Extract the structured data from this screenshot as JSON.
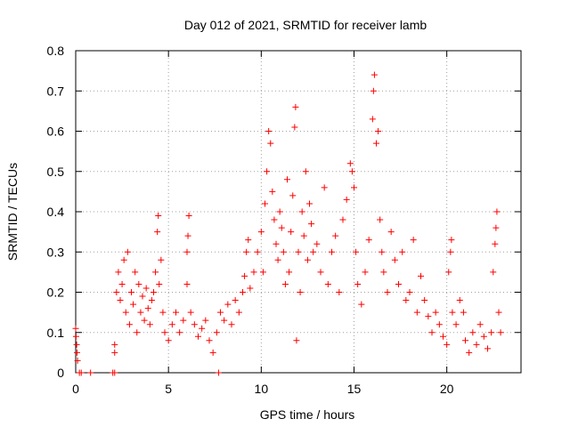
{
  "chart_data": {
    "type": "scatter",
    "title": "Day 012 of 2021, SRMTID for receiver lamb",
    "xlabel": "GPS time / hours",
    "ylabel": "SRMTID / TECUs",
    "xlim": [
      0,
      24
    ],
    "ylim": [
      0,
      0.8
    ],
    "xticks": [
      0,
      5,
      10,
      15,
      20
    ],
    "xtick_labels": [
      "0",
      "5",
      "10",
      "15",
      "20"
    ],
    "yticks": [
      0,
      0.1,
      0.2,
      0.3,
      0.4,
      0.5,
      0.6,
      0.7,
      0.8
    ],
    "ytick_labels": [
      "0",
      "0.1",
      "0.2",
      "0.3",
      "0.4",
      "0.5",
      "0.6",
      "0.7",
      "0.8"
    ],
    "grid": true,
    "marker": "+",
    "color": "#ff0000",
    "series": [
      {
        "name": "SRMTID",
        "points": [
          [
            0.0,
            0.11
          ],
          [
            0.02,
            0.09
          ],
          [
            0.05,
            0.07
          ],
          [
            0.07,
            0.05
          ],
          [
            0.1,
            0.03
          ],
          [
            0.2,
            0.0
          ],
          [
            0.3,
            0.0
          ],
          [
            0.8,
            0.0
          ],
          [
            2.0,
            0.0
          ],
          [
            2.1,
            0.0
          ],
          [
            7.7,
            0.0
          ],
          [
            2.1,
            0.05
          ],
          [
            2.1,
            0.07
          ],
          [
            2.2,
            0.2
          ],
          [
            2.3,
            0.25
          ],
          [
            2.4,
            0.18
          ],
          [
            2.5,
            0.22
          ],
          [
            2.6,
            0.28
          ],
          [
            2.7,
            0.15
          ],
          [
            2.8,
            0.3
          ],
          [
            2.9,
            0.12
          ],
          [
            3.0,
            0.2
          ],
          [
            3.1,
            0.17
          ],
          [
            3.2,
            0.25
          ],
          [
            3.3,
            0.1
          ],
          [
            3.4,
            0.22
          ],
          [
            3.5,
            0.15
          ],
          [
            3.6,
            0.19
          ],
          [
            3.7,
            0.13
          ],
          [
            3.8,
            0.21
          ],
          [
            3.9,
            0.16
          ],
          [
            4.0,
            0.12
          ],
          [
            4.1,
            0.18
          ],
          [
            4.2,
            0.2
          ],
          [
            4.3,
            0.25
          ],
          [
            4.4,
            0.35
          ],
          [
            4.45,
            0.39
          ],
          [
            4.5,
            0.22
          ],
          [
            4.6,
            0.28
          ],
          [
            4.7,
            0.15
          ],
          [
            4.8,
            0.1
          ],
          [
            5.0,
            0.08
          ],
          [
            5.2,
            0.12
          ],
          [
            5.4,
            0.15
          ],
          [
            5.6,
            0.1
          ],
          [
            5.8,
            0.13
          ],
          [
            6.0,
            0.22
          ],
          [
            6.0,
            0.3
          ],
          [
            6.05,
            0.34
          ],
          [
            6.1,
            0.39
          ],
          [
            6.2,
            0.15
          ],
          [
            6.4,
            0.12
          ],
          [
            6.6,
            0.09
          ],
          [
            6.8,
            0.11
          ],
          [
            7.0,
            0.13
          ],
          [
            7.2,
            0.08
          ],
          [
            7.4,
            0.05
          ],
          [
            7.6,
            0.1
          ],
          [
            7.8,
            0.15
          ],
          [
            8.0,
            0.13
          ],
          [
            8.2,
            0.17
          ],
          [
            8.4,
            0.12
          ],
          [
            8.6,
            0.18
          ],
          [
            8.8,
            0.15
          ],
          [
            9.0,
            0.2
          ],
          [
            9.1,
            0.24
          ],
          [
            9.2,
            0.3
          ],
          [
            9.3,
            0.33
          ],
          [
            9.4,
            0.21
          ],
          [
            9.6,
            0.25
          ],
          [
            9.8,
            0.3
          ],
          [
            10.0,
            0.35
          ],
          [
            10.1,
            0.25
          ],
          [
            10.2,
            0.42
          ],
          [
            10.3,
            0.5
          ],
          [
            10.4,
            0.6
          ],
          [
            10.5,
            0.57
          ],
          [
            10.6,
            0.45
          ],
          [
            10.7,
            0.38
          ],
          [
            10.8,
            0.32
          ],
          [
            10.9,
            0.28
          ],
          [
            11.0,
            0.4
          ],
          [
            11.1,
            0.36
          ],
          [
            11.2,
            0.3
          ],
          [
            11.3,
            0.22
          ],
          [
            11.4,
            0.48
          ],
          [
            11.5,
            0.25
          ],
          [
            11.6,
            0.35
          ],
          [
            11.7,
            0.44
          ],
          [
            11.8,
            0.61
          ],
          [
            11.85,
            0.66
          ],
          [
            11.9,
            0.08
          ],
          [
            12.0,
            0.3
          ],
          [
            12.1,
            0.2
          ],
          [
            12.2,
            0.4
          ],
          [
            12.3,
            0.34
          ],
          [
            12.4,
            0.5
          ],
          [
            12.5,
            0.28
          ],
          [
            12.6,
            0.42
          ],
          [
            12.7,
            0.37
          ],
          [
            12.8,
            0.3
          ],
          [
            13.0,
            0.32
          ],
          [
            13.2,
            0.25
          ],
          [
            13.4,
            0.46
          ],
          [
            13.6,
            0.22
          ],
          [
            13.8,
            0.3
          ],
          [
            14.0,
            0.34
          ],
          [
            14.2,
            0.2
          ],
          [
            14.4,
            0.38
          ],
          [
            14.6,
            0.43
          ],
          [
            14.8,
            0.52
          ],
          [
            14.9,
            0.5
          ],
          [
            15.0,
            0.46
          ],
          [
            15.1,
            0.3
          ],
          [
            15.2,
            0.22
          ],
          [
            15.4,
            0.17
          ],
          [
            15.6,
            0.25
          ],
          [
            15.8,
            0.33
          ],
          [
            16.0,
            0.63
          ],
          [
            16.05,
            0.7
          ],
          [
            16.1,
            0.74
          ],
          [
            16.2,
            0.57
          ],
          [
            16.3,
            0.6
          ],
          [
            16.4,
            0.38
          ],
          [
            16.5,
            0.3
          ],
          [
            16.6,
            0.25
          ],
          [
            16.8,
            0.2
          ],
          [
            17.0,
            0.35
          ],
          [
            17.2,
            0.28
          ],
          [
            17.4,
            0.22
          ],
          [
            17.6,
            0.3
          ],
          [
            17.8,
            0.18
          ],
          [
            18.0,
            0.2
          ],
          [
            18.2,
            0.33
          ],
          [
            18.4,
            0.15
          ],
          [
            18.6,
            0.24
          ],
          [
            18.8,
            0.18
          ],
          [
            19.0,
            0.14
          ],
          [
            19.2,
            0.1
          ],
          [
            19.4,
            0.15
          ],
          [
            19.6,
            0.12
          ],
          [
            19.8,
            0.09
          ],
          [
            20.0,
            0.07
          ],
          [
            20.1,
            0.25
          ],
          [
            20.2,
            0.3
          ],
          [
            20.25,
            0.33
          ],
          [
            20.3,
            0.15
          ],
          [
            20.5,
            0.12
          ],
          [
            20.7,
            0.18
          ],
          [
            20.9,
            0.15
          ],
          [
            21.0,
            0.08
          ],
          [
            21.2,
            0.05
          ],
          [
            21.4,
            0.1
          ],
          [
            21.6,
            0.07
          ],
          [
            21.8,
            0.12
          ],
          [
            22.0,
            0.09
          ],
          [
            22.2,
            0.06
          ],
          [
            22.4,
            0.1
          ],
          [
            22.5,
            0.25
          ],
          [
            22.6,
            0.32
          ],
          [
            22.65,
            0.36
          ],
          [
            22.7,
            0.4
          ],
          [
            22.8,
            0.15
          ],
          [
            22.9,
            0.1
          ]
        ]
      }
    ]
  }
}
